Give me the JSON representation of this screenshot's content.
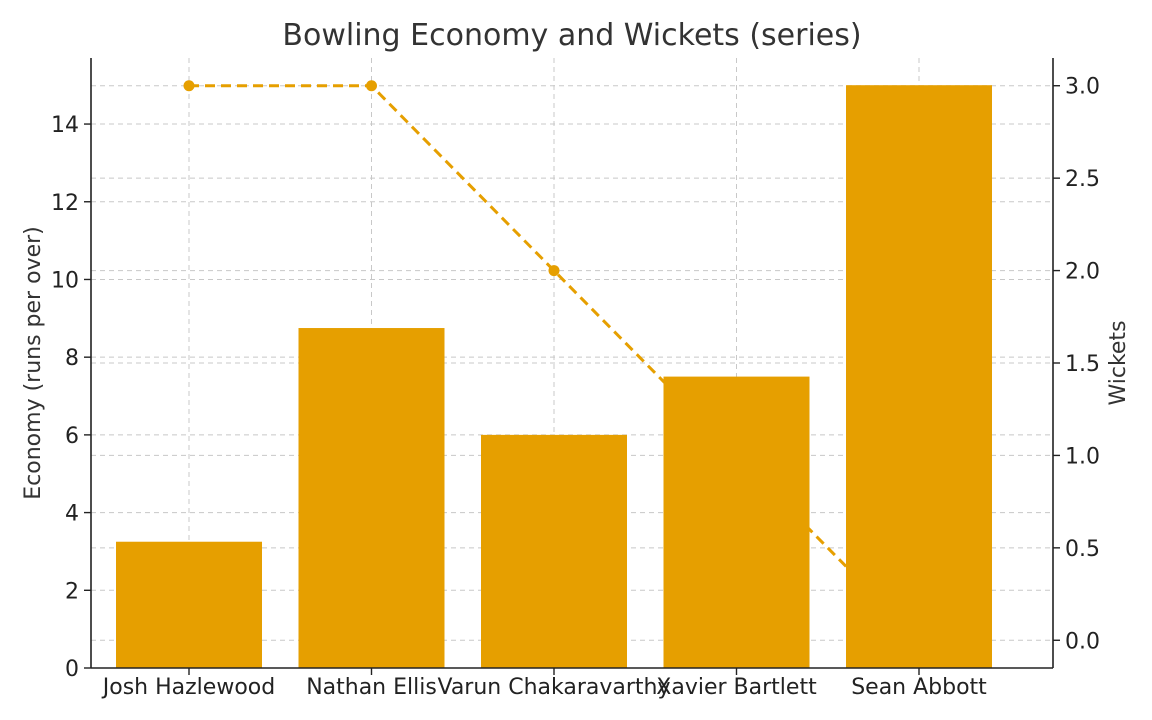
{
  "chart_data": {
    "type": "bar",
    "title": "Bowling Economy and Wickets (series)",
    "categories": [
      "Josh Hazlewood",
      "Nathan Ellis",
      "Varun Chakaravarthy",
      "Xavier Bartlett",
      "Sean Abbott"
    ],
    "series": [
      {
        "name": "Economy",
        "type": "bar",
        "axis": "left",
        "values": [
          3.25,
          8.75,
          6.0,
          7.5,
          15.0
        ]
      },
      {
        "name": "Wickets",
        "type": "line",
        "axis": "right",
        "style": "dashed",
        "values": [
          3,
          3,
          2,
          1,
          0
        ]
      }
    ],
    "ylabel": "Economy (runs per over)",
    "y2label": "Wickets",
    "ylim": [
      0,
      15.7
    ],
    "y2lim": [
      -0.15,
      3.15
    ],
    "yticks": [
      "0",
      "2",
      "4",
      "6",
      "8",
      "10",
      "12",
      "14"
    ],
    "y2ticks": [
      "0.0",
      "0.5",
      "1.0",
      "1.5",
      "2.0",
      "2.5",
      "3.0"
    ],
    "grid": true,
    "colors": {
      "bar": "#E69F00",
      "line": "#E69F00"
    }
  }
}
